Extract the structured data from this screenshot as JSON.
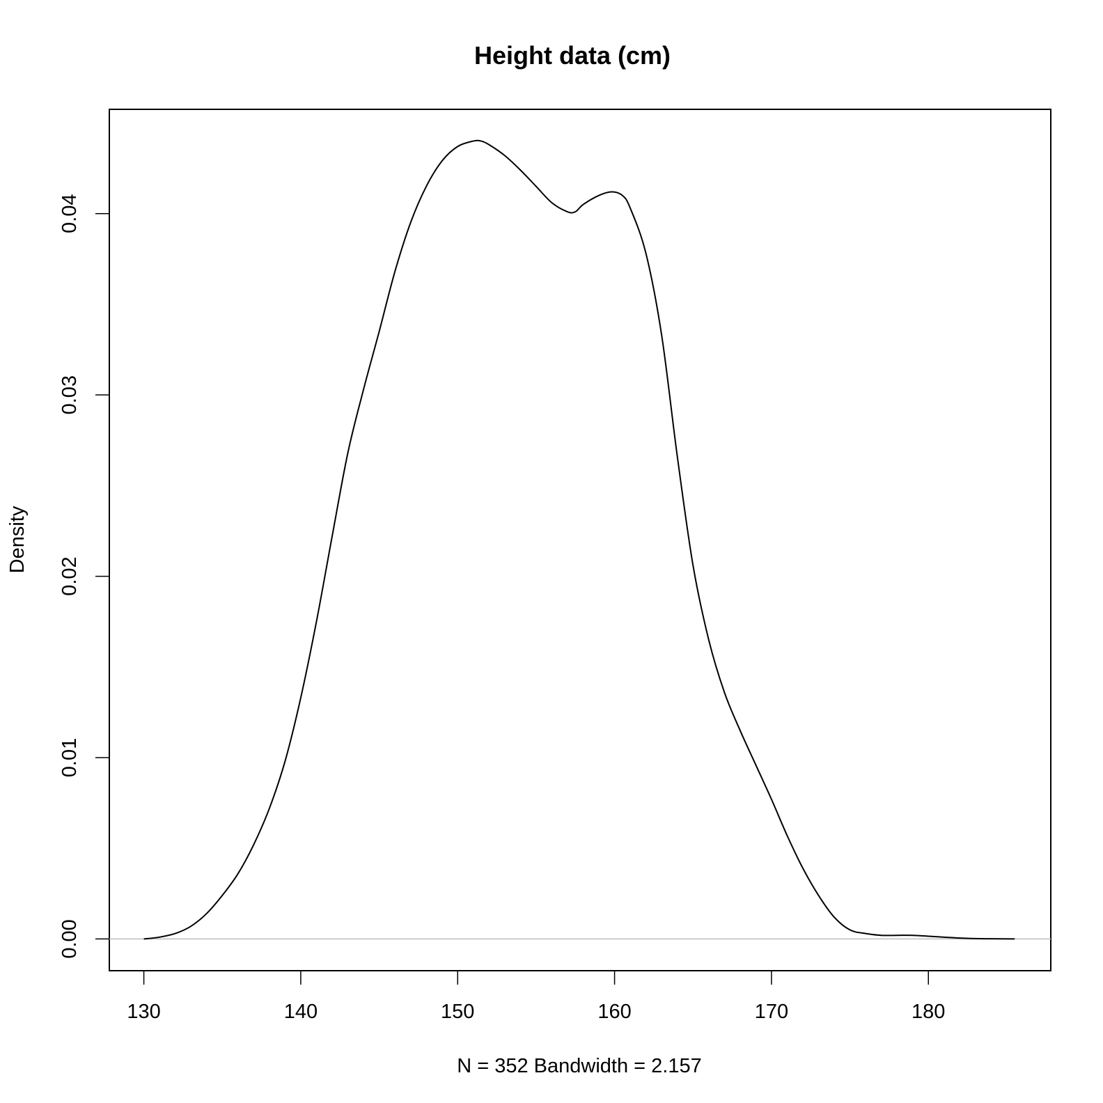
{
  "chart_data": {
    "type": "line",
    "title": "Height data (cm)",
    "xlabel": "N = 352   Bandwidth = 2.157",
    "ylabel": "Density",
    "xlim": [
      127.8,
      187.8
    ],
    "ylim": [
      -0.00175,
      0.04575
    ],
    "x_ticks": [
      130,
      140,
      150,
      160,
      170,
      180
    ],
    "x_tick_labels": [
      "130",
      "140",
      "150",
      "160",
      "170",
      "180"
    ],
    "y_ticks": [
      0.0,
      0.01,
      0.02,
      0.03,
      0.04
    ],
    "y_tick_labels": [
      "0.00",
      "0.01",
      "0.02",
      "0.03",
      "0.04"
    ],
    "baseline": 0,
    "grid": false,
    "series": [
      {
        "x": [
          130.0,
          131.0,
          132.0,
          133.0,
          134.0,
          135.0,
          136.0,
          137.0,
          138.0,
          139.0,
          140.0,
          141.0,
          142.0,
          143.0,
          144.0,
          145.0,
          146.0,
          147.0,
          148.0,
          149.0,
          150.0,
          151.0,
          151.5,
          152.0,
          153.0,
          154.0,
          155.0,
          156.0,
          157.0,
          157.5,
          158.0,
          159.0,
          159.8,
          160.5,
          161.0,
          162.0,
          163.0,
          164.0,
          165.0,
          166.0,
          167.0,
          168.0,
          169.0,
          170.0,
          171.0,
          172.0,
          173.0,
          174.0,
          175.0,
          176.0,
          177.0,
          178.0,
          179.0,
          180.0,
          181.0,
          182.0,
          183.0,
          184.0,
          185.5
        ],
        "y": [
          0.0,
          0.0001,
          0.0003,
          0.0007,
          0.0014,
          0.0024,
          0.0036,
          0.0052,
          0.0072,
          0.0098,
          0.0133,
          0.0175,
          0.0222,
          0.0268,
          0.0303,
          0.0335,
          0.0368,
          0.0395,
          0.0415,
          0.0429,
          0.0437,
          0.044,
          0.044,
          0.0438,
          0.0432,
          0.0424,
          0.0415,
          0.0406,
          0.0401,
          0.0401,
          0.0405,
          0.041,
          0.0412,
          0.041,
          0.0403,
          0.0378,
          0.0333,
          0.0266,
          0.0206,
          0.0165,
          0.0136,
          0.0115,
          0.0096,
          0.0077,
          0.0057,
          0.0039,
          0.0024,
          0.0012,
          0.0005,
          0.0003,
          0.0002,
          0.0002,
          0.0002,
          0.00015,
          0.0001,
          5e-05,
          2e-05,
          1e-05,
          0.0
        ]
      }
    ]
  }
}
